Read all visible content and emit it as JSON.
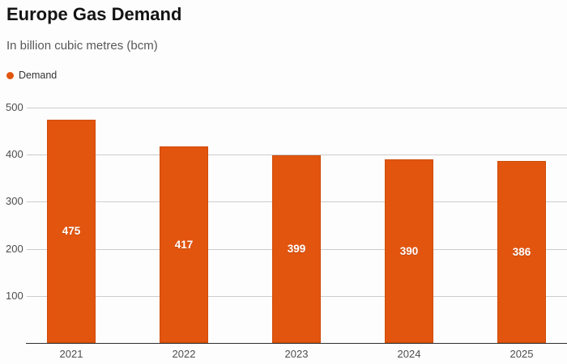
{
  "header": {
    "title": "Europe Gas Demand",
    "subtitle": "In billion cubic metres (bcm)"
  },
  "legend": {
    "label": "Demand",
    "dot_icon": "filled-circle",
    "color": "#e2550f"
  },
  "chart_data": {
    "type": "bar",
    "title": "Europe Gas Demand",
    "subtitle": "In billion cubic metres (bcm)",
    "categories": [
      "2021",
      "2022",
      "2023",
      "2024",
      "2025"
    ],
    "series": [
      {
        "name": "Demand",
        "color": "#e2550f",
        "values": [
          475,
          417,
          399,
          390,
          386
        ]
      }
    ],
    "xlabel": "",
    "ylabel": "",
    "ylim": [
      0,
      500
    ],
    "yticks": [
      500,
      400,
      300,
      200,
      100
    ],
    "grid": true,
    "show_value_labels": true,
    "legend_position": "top-left"
  },
  "colors": {
    "bar": "#e2550f",
    "bar_border": "#cf4c08",
    "grid_line": "#cccccc",
    "axis_line": "#2e2e2e",
    "title_text": "#141414",
    "subtitle_text": "#585858",
    "tick_text": "#4d4d4d",
    "value_label_text": "#ffffff",
    "background": "#fdfdfd"
  }
}
